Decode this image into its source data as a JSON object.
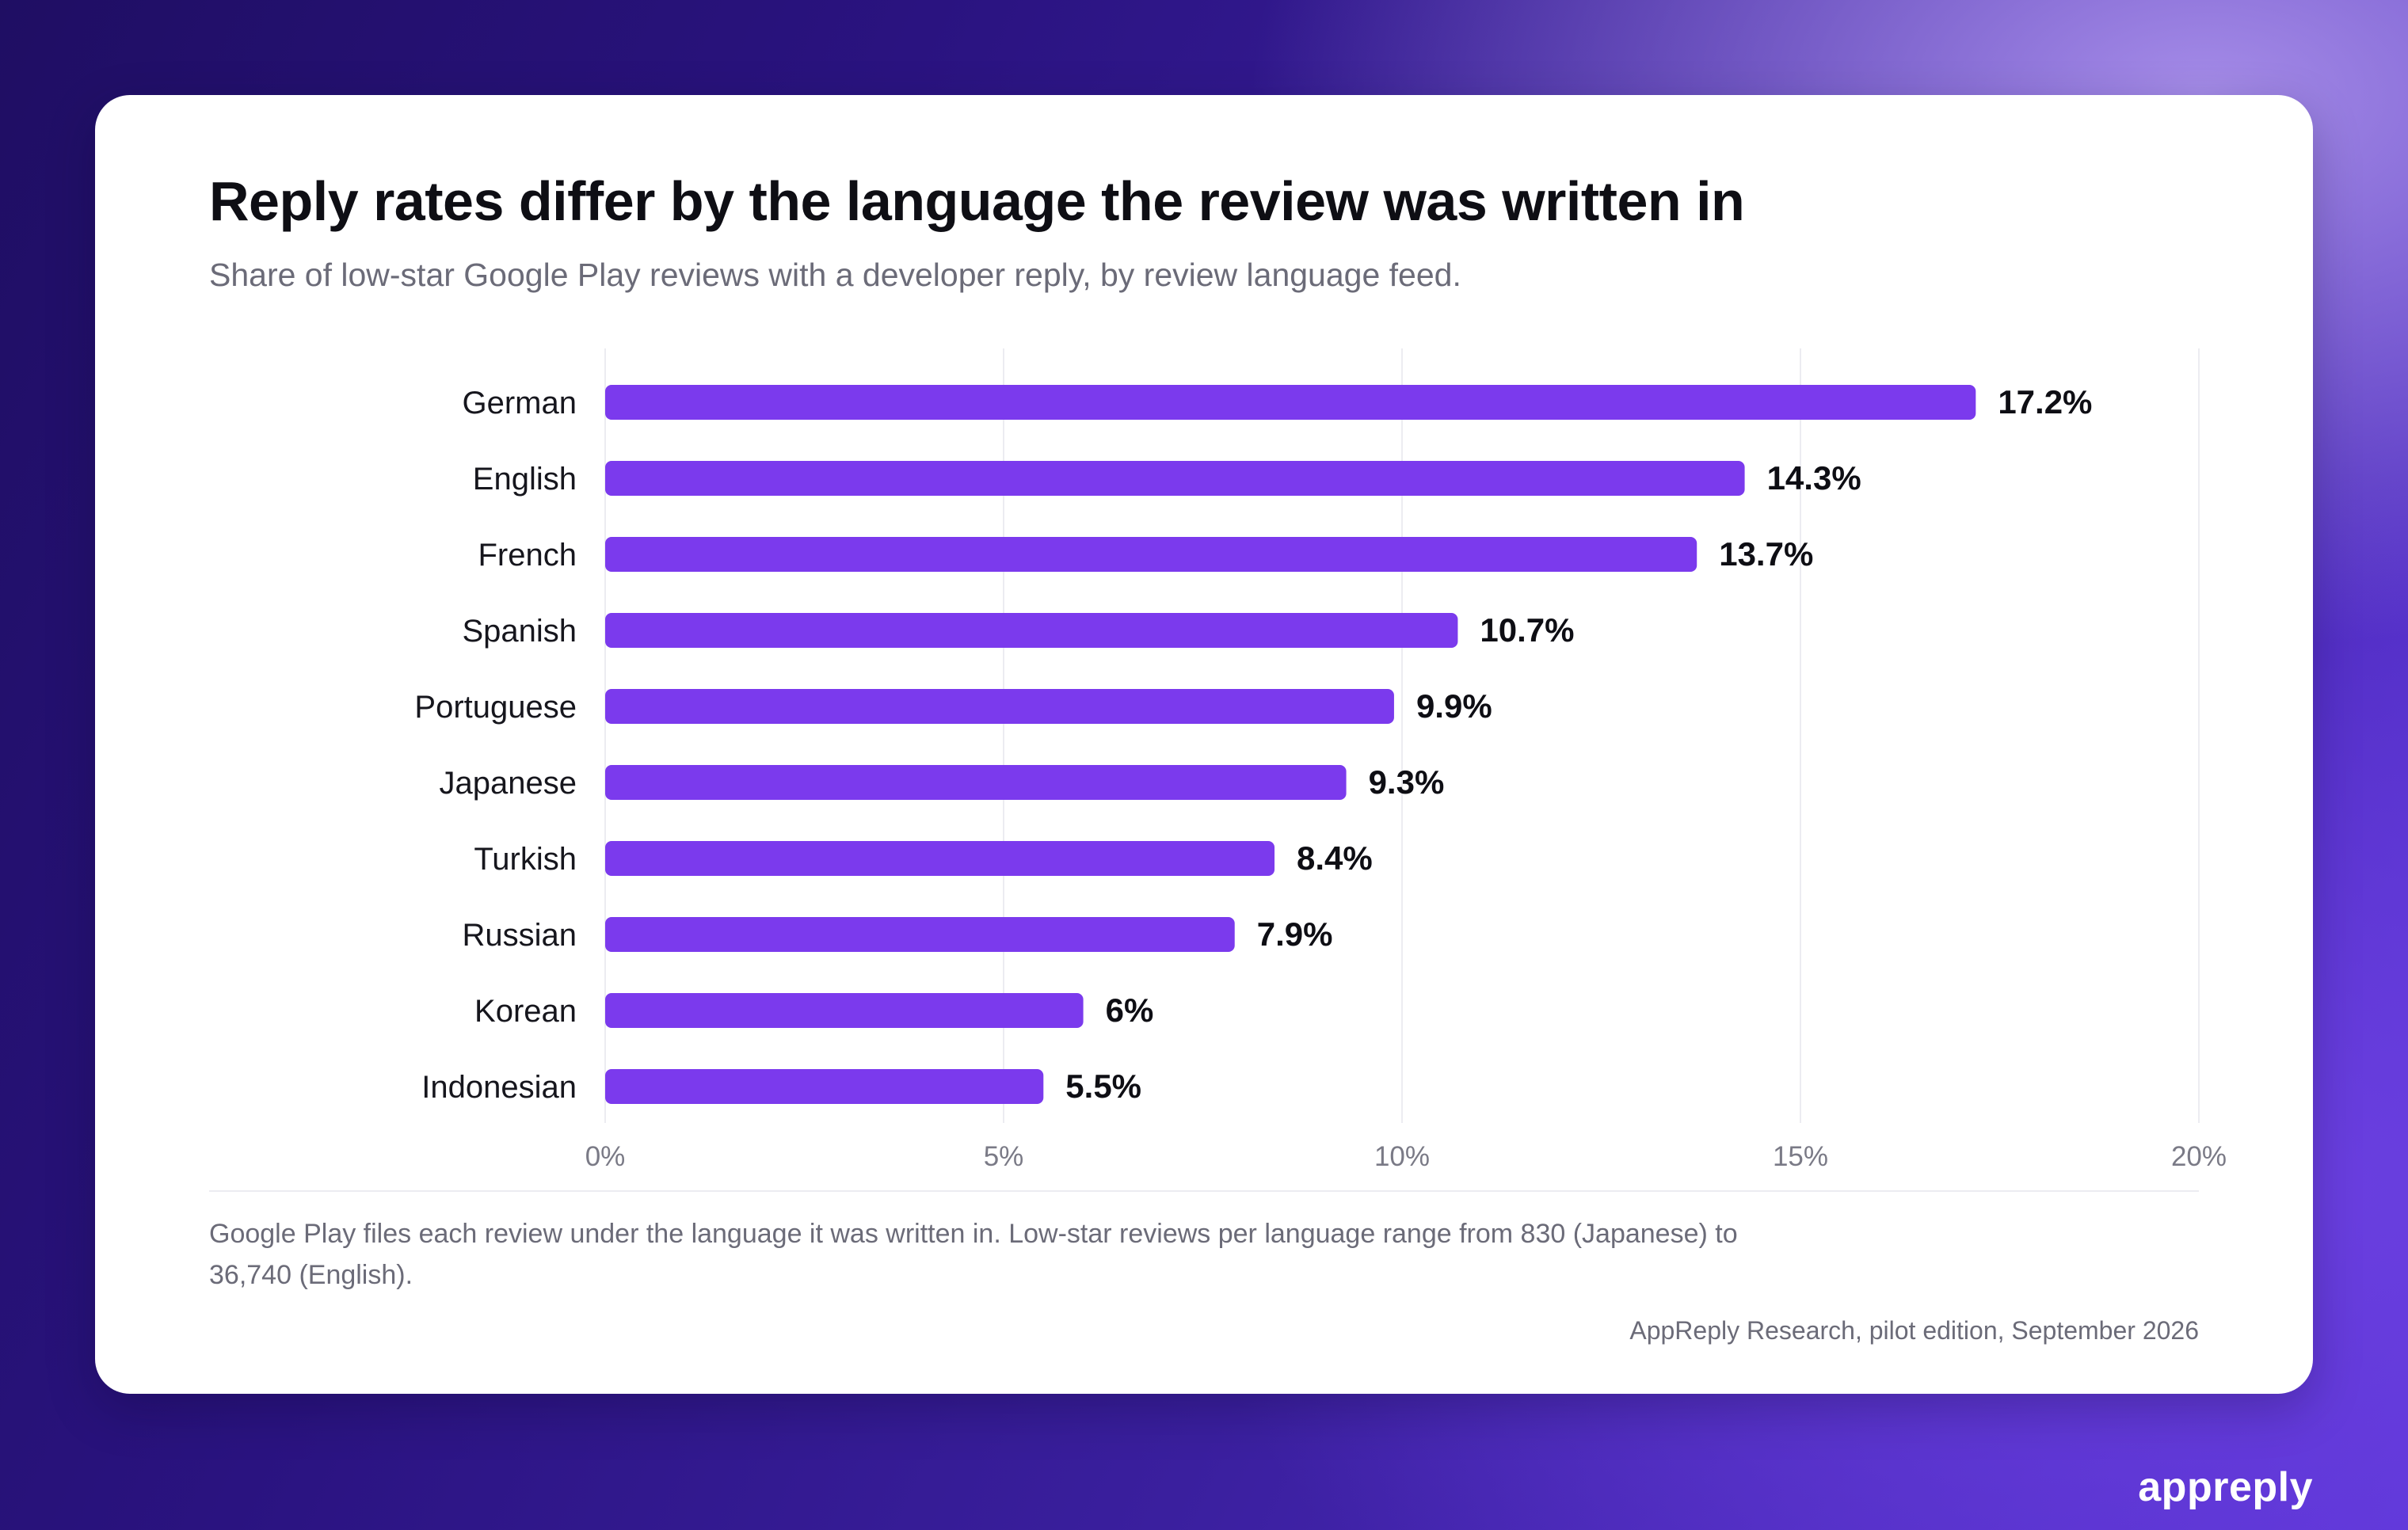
{
  "card": {
    "title": "Reply rates differ by the language the review was written in",
    "subtitle": "Share of low-star Google Play reviews with a developer reply, by review language feed.",
    "note": "Google Play files each review under the language it was written in. Low-star reviews per language range from 830 (Japanese) to 36,740 (English).",
    "source": "AppReply Research, pilot edition, September 2026"
  },
  "brand": {
    "name": "appreply"
  },
  "chart_data": {
    "type": "bar",
    "orientation": "horizontal",
    "categories": [
      "German",
      "English",
      "French",
      "Spanish",
      "Portuguese",
      "Japanese",
      "Turkish",
      "Russian",
      "Korean",
      "Indonesian"
    ],
    "values": [
      17.2,
      14.3,
      13.7,
      10.7,
      9.9,
      9.3,
      8.4,
      7.9,
      6,
      5.5
    ],
    "value_labels": [
      "17.2%",
      "14.3%",
      "13.7%",
      "10.7%",
      "9.9%",
      "9.3%",
      "8.4%",
      "7.9%",
      "6%",
      "5.5%"
    ],
    "xlim": [
      0,
      20
    ],
    "x_ticks": [
      0,
      5,
      10,
      15,
      20
    ],
    "x_tick_labels": [
      "0%",
      "5%",
      "10%",
      "15%",
      "20%"
    ],
    "title": "Reply rates differ by the language the review was written in",
    "subtitle": "Share of low-star Google Play reviews with a developer reply, by review language feed.",
    "grid": true,
    "legend": "none",
    "bar_color": "#7b3aed"
  }
}
